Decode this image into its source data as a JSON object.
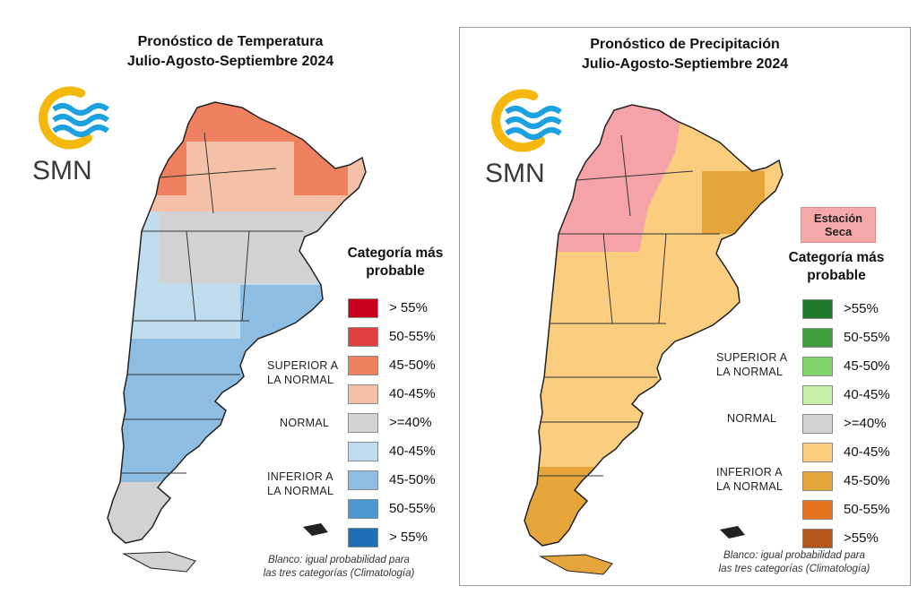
{
  "brand": {
    "name": "SMN",
    "colors": {
      "ring": "#f5b80f",
      "waves": "#1da1e0",
      "text": "#3a3a3a"
    }
  },
  "temperature": {
    "title_line1": "Pronóstico de Temperatura",
    "title_line2": "Julio-Agosto-Septiembre 2024",
    "legend_heading_line1": "Categoría más",
    "legend_heading_line2": "probable",
    "legend": [
      {
        "label": "> 55%",
        "color": "#c8001e"
      },
      {
        "label": "50-55%",
        "color": "#e04040"
      },
      {
        "label": "45-50%",
        "color": "#ef8060"
      },
      {
        "label": "40-45%",
        "color": "#f5c0a8"
      },
      {
        "label": ">=40%",
        "color": "#d2d2d2"
      },
      {
        "label": "40-45%",
        "color": "#c2dcef"
      },
      {
        "label": "45-50%",
        "color": "#8dbde2"
      },
      {
        "label": "50-55%",
        "color": "#4a96cf"
      },
      {
        "label": "> 55%",
        "color": "#1f6fb8"
      }
    ],
    "groups": {
      "superior_line1": "SUPERIOR A",
      "superior_line2": "LA NORMAL",
      "normal": "NORMAL",
      "inferior_line1": "INFERIOR A",
      "inferior_line2": "LA NORMAL"
    },
    "footnote_line1": "Blanco: igual probabilidad para",
    "footnote_line2": "las tres categorías (Climatología)"
  },
  "precipitation": {
    "title_line1": "Pronóstico de Precipitación",
    "title_line2": "Julio-Agosto-Septiembre 2024",
    "season_badge_line1": "Estación",
    "season_badge_line2": "Seca",
    "legend_heading_line1": "Categoría más",
    "legend_heading_line2": "probable",
    "legend": [
      {
        "label": ">55%",
        "color": "#1e7a2a"
      },
      {
        "label": "50-55%",
        "color": "#3fa03f"
      },
      {
        "label": "45-50%",
        "color": "#7fd46a"
      },
      {
        "label": "40-45%",
        "color": "#c8f0a8"
      },
      {
        "label": ">=40%",
        "color": "#d2d2d2"
      },
      {
        "label": "40-45%",
        "color": "#fbcd7e"
      },
      {
        "label": "45-50%",
        "color": "#e6a53a"
      },
      {
        "label": "50-55%",
        "color": "#e3731e"
      },
      {
        "label": ">55%",
        "color": "#b4561a"
      }
    ],
    "groups": {
      "superior_line1": "SUPERIOR A",
      "superior_line2": "LA NORMAL",
      "normal": "NORMAL",
      "inferior_line1": "INFERIOR A",
      "inferior_line2": "LA NORMAL"
    },
    "footnote_line1": "Blanco: igual probabilidad para",
    "footnote_line2": "las tres categorías (Climatología)"
  }
}
